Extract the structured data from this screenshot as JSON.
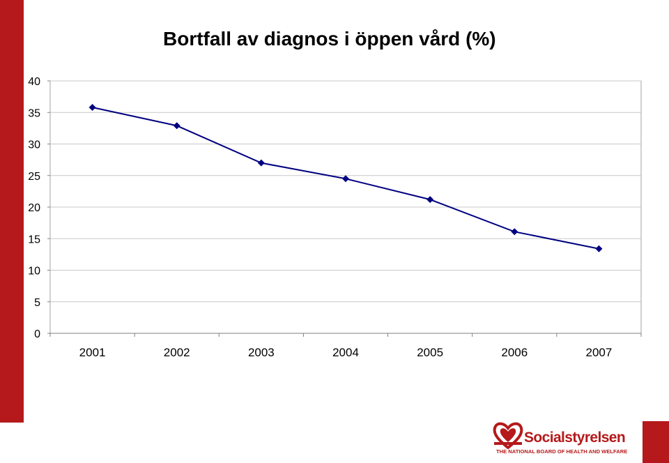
{
  "chart_data": {
    "type": "line",
    "title": "Bortfall av diagnos i öppen vård (%)",
    "categories": [
      "2001",
      "2002",
      "2003",
      "2004",
      "2005",
      "2006",
      "2007"
    ],
    "series": [
      {
        "values": [
          35.8,
          32.9,
          27.0,
          24.5,
          21.2,
          16.1,
          13.4
        ]
      }
    ],
    "yticks": [
      0,
      5,
      10,
      15,
      20,
      25,
      30,
      35,
      40
    ],
    "ylim": [
      0,
      40
    ],
    "grid": true,
    "legend": "none",
    "line_color": "#000080",
    "marker": "diamond"
  },
  "logo": {
    "name": "Socialstyrelsen",
    "subtitle": "THE NATIONAL BOARD OF HEALTH AND WELFARE"
  },
  "colors": {
    "accent": "#b5191b",
    "series": "#000080"
  }
}
